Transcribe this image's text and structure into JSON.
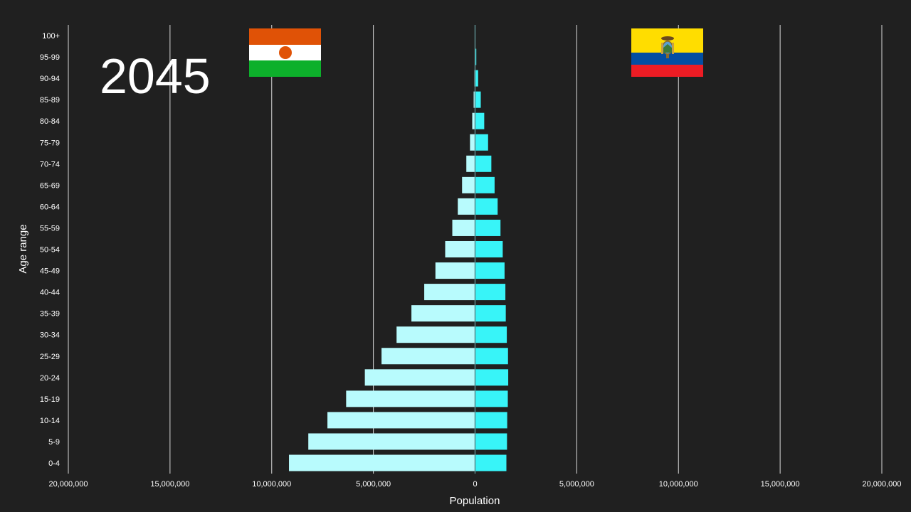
{
  "year_label": "2045",
  "colors": {
    "background": "#202020",
    "left_bars": "#B8FBFD",
    "right_bars": "#38F4F8",
    "gridline": "#d8d8d8",
    "text": "#ffffff"
  },
  "flags": {
    "left": {
      "icon": "niger-flag-icon"
    },
    "right": {
      "icon": "ecuador-flag-icon"
    }
  },
  "chart_data": {
    "type": "bar",
    "orientation": "horizontal",
    "subtype": "population-pyramid",
    "title": "",
    "xlabel": "Population",
    "ylabel": "Age range",
    "xlim": [
      -20000000,
      20000000
    ],
    "x_ticks": [
      -20000000,
      -15000000,
      -10000000,
      -5000000,
      0,
      5000000,
      10000000,
      15000000,
      20000000
    ],
    "x_tick_labels": [
      "20,000,000",
      "15,000,000",
      "10,000,000",
      "5,000,000",
      "0",
      "5,000,000",
      "10,000,000",
      "15,000,000",
      "20,000,000"
    ],
    "grid": true,
    "categories": [
      "100+",
      "95-99",
      "90-94",
      "85-89",
      "80-84",
      "75-79",
      "70-74",
      "65-69",
      "60-64",
      "55-59",
      "50-54",
      "45-49",
      "40-44",
      "35-39",
      "30-34",
      "25-29",
      "20-24",
      "15-19",
      "10-14",
      "5-9",
      "0-4"
    ],
    "series": [
      {
        "side": "left",
        "values": [
          5000,
          15000,
          35000,
          70000,
          140000,
          250000,
          430000,
          640000,
          850000,
          1120000,
          1470000,
          1950000,
          2500000,
          3130000,
          3860000,
          4600000,
          5420000,
          6340000,
          7260000,
          8200000,
          9150000
        ]
      },
      {
        "side": "right",
        "values": [
          15000,
          60000,
          150000,
          280000,
          450000,
          640000,
          800000,
          960000,
          1110000,
          1250000,
          1360000,
          1450000,
          1490000,
          1510000,
          1560000,
          1620000,
          1630000,
          1610000,
          1580000,
          1570000,
          1540000
        ]
      }
    ]
  }
}
